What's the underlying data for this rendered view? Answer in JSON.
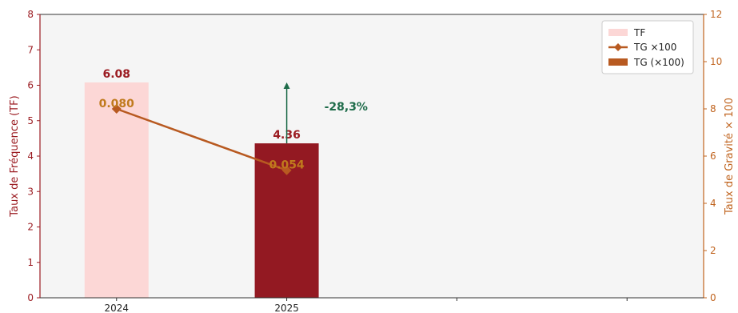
{
  "chart_data": {
    "type": "bar",
    "categories": [
      "2024",
      "2025"
    ],
    "x_extra_ticks": 2,
    "series": [
      {
        "name": "TF",
        "axis": "left",
        "values": [
          6.08,
          4.36
        ],
        "colors": [
          "#fcd7d6",
          "#931922"
        ],
        "labels": [
          "6.08",
          "4.36"
        ]
      },
      {
        "name": "TG ×100",
        "axis": "right",
        "type": "line",
        "values": [
          8.0,
          5.4
        ],
        "color": "#b85a21",
        "labels": [
          "0.080",
          "0.054"
        ]
      }
    ],
    "legend_entries": [
      "TF",
      "TG ×100",
      "TG (×100)"
    ],
    "legend_bar_color": "#b85a21",
    "legend_position": "top-right",
    "ylabel_left": "Taux de Fréquence (TF)",
    "ylabel_right": "Taux de Gravité × 100",
    "ylim_left": [
      0,
      8
    ],
    "ylim_right": [
      0,
      12
    ],
    "yticks_left": [
      "0",
      "1",
      "2",
      "3",
      "4",
      "5",
      "6",
      "7",
      "8"
    ],
    "yticks_right": [
      "0",
      "2",
      "4",
      "6",
      "8",
      "10",
      "12"
    ],
    "colors": {
      "left_axis": "#9b1c22",
      "right_axis": "#c0641f",
      "plot_bg": "#f5f5f5",
      "arrow": "#1d6b49",
      "tf_label": "#9b1c22",
      "tg_label": "#c07a1d"
    },
    "annotation": {
      "text": "-28,3%",
      "color": "#1d6b49",
      "x_category": "2025",
      "from_value": 4.36,
      "to_value": 6.08
    },
    "grid": false
  }
}
